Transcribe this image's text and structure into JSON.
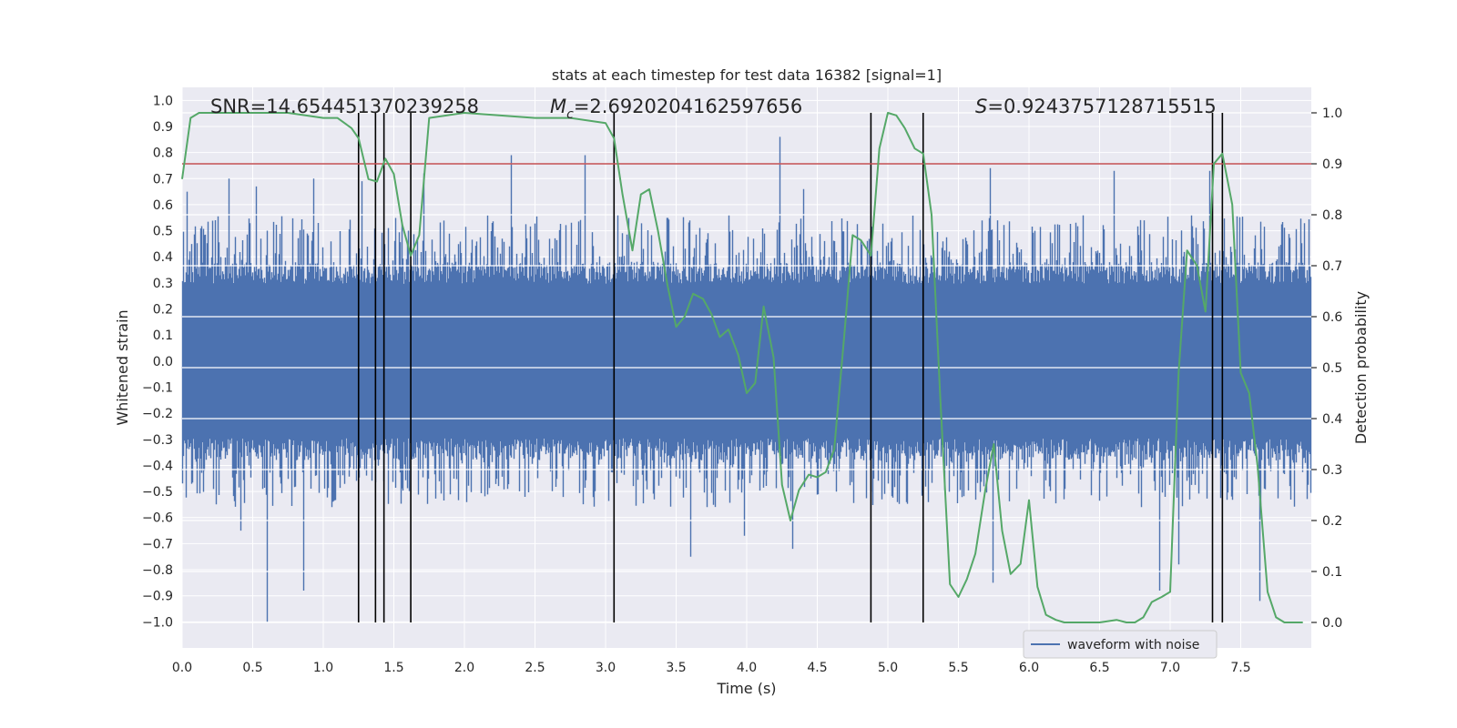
{
  "chart_data": {
    "type": "line",
    "title": "stats at each timestep for test data 16382 [signal=1]",
    "xlabel": "Time (s)",
    "ylabel_left": "Whitened strain",
    "ylabel_right": "Detection probability",
    "xlim": [
      0.0,
      8.0
    ],
    "ylim_left": [
      -1.1,
      1.05
    ],
    "ylim_right": [
      -0.05,
      1.05
    ],
    "x_ticks": [
      0.0,
      0.5,
      1.0,
      1.5,
      2.0,
      2.5,
      3.0,
      3.5,
      4.0,
      4.5,
      5.0,
      5.5,
      6.0,
      6.5,
      7.0,
      7.5
    ],
    "x_tick_labels": [
      "0.0",
      "0.5",
      "1.0",
      "1.5",
      "2.0",
      "2.5",
      "3.0",
      "3.5",
      "4.0",
      "4.5",
      "5.0",
      "5.5",
      "6.0",
      "6.5",
      "7.0",
      "7.5"
    ],
    "y_left_ticks": [
      1.0,
      0.9,
      0.8,
      0.7,
      0.6,
      0.5,
      0.4,
      0.3,
      0.2,
      0.1,
      0.0,
      -0.1,
      -0.2,
      -0.3,
      -0.4,
      -0.5,
      -0.6,
      -0.7,
      -0.8,
      -0.9,
      -1.0
    ],
    "y_left_tick_labels": [
      "1.0",
      "0.9",
      "0.8",
      "0.7",
      "0.6",
      "0.5",
      "0.4",
      "0.3",
      "0.2",
      "0.1",
      "0.0",
      "−0.1",
      "−0.2",
      "−0.3",
      "−0.4",
      "−0.5",
      "−0.6",
      "−0.7",
      "−0.8",
      "−0.9",
      "−1.0"
    ],
    "y_right_ticks": [
      1.0,
      0.9,
      0.8,
      0.7,
      0.6,
      0.5,
      0.4,
      0.3,
      0.2,
      0.1,
      0.0
    ],
    "y_right_tick_labels": [
      "1.0",
      "0.9",
      "0.8",
      "0.7",
      "0.6",
      "0.5",
      "0.4",
      "0.3",
      "0.2",
      "0.1",
      "0.0"
    ],
    "grid": true,
    "legend": {
      "position": "bottom-right",
      "entries": [
        "waveform with noise"
      ]
    },
    "annotations": {
      "snr": "SNR=14.654451370239258",
      "mc_prefix": "M",
      "mc_sub": "c",
      "mc_value": "=2.6920204162597656",
      "s_prefix": "S",
      "s_value": "=0.9243757128715515"
    },
    "threshold": {
      "value": 0.9,
      "axis": "right",
      "color": "#c44e52"
    },
    "vertical_lines": [
      1.25,
      1.37,
      1.43,
      1.62,
      3.06,
      4.88,
      5.25,
      7.3,
      7.37
    ],
    "waveform": {
      "name": "waveform with noise",
      "color": "#4c72b0",
      "typical_amplitude": 0.38,
      "peaks_positive": [
        {
          "x": 0.03,
          "y": 0.65
        },
        {
          "x": 0.33,
          "y": 0.7
        },
        {
          "x": 0.52,
          "y": 0.67
        },
        {
          "x": 0.93,
          "y": 0.7
        },
        {
          "x": 1.27,
          "y": 0.69
        },
        {
          "x": 1.71,
          "y": 0.72
        },
        {
          "x": 2.33,
          "y": 0.79
        },
        {
          "x": 2.85,
          "y": 0.79
        },
        {
          "x": 4.23,
          "y": 0.86
        },
        {
          "x": 4.4,
          "y": 0.66
        },
        {
          "x": 5.72,
          "y": 0.74
        },
        {
          "x": 6.6,
          "y": 0.73
        },
        {
          "x": 7.28,
          "y": 0.73
        }
      ],
      "peaks_negative": [
        {
          "x": 0.6,
          "y": -1.0
        },
        {
          "x": 0.86,
          "y": -0.88
        },
        {
          "x": 0.41,
          "y": -0.65
        },
        {
          "x": 3.6,
          "y": -0.75
        },
        {
          "x": 3.98,
          "y": -0.67
        },
        {
          "x": 4.32,
          "y": -0.72
        },
        {
          "x": 5.74,
          "y": -0.85
        },
        {
          "x": 6.92,
          "y": -0.88
        },
        {
          "x": 7.06,
          "y": -0.78
        },
        {
          "x": 7.63,
          "y": -0.92
        }
      ]
    },
    "detection_probability": {
      "name": "detection probability",
      "color": "#55a868",
      "x": [
        0.0,
        0.06,
        0.12,
        0.25,
        0.5,
        0.75,
        1.0,
        1.1,
        1.2,
        1.25,
        1.32,
        1.38,
        1.44,
        1.5,
        1.56,
        1.62,
        1.68,
        1.75,
        2.0,
        2.5,
        2.75,
        3.0,
        3.06,
        3.12,
        3.19,
        3.25,
        3.31,
        3.37,
        3.44,
        3.5,
        3.56,
        3.62,
        3.69,
        3.75,
        3.81,
        3.87,
        3.94,
        4.0,
        4.06,
        4.12,
        4.19,
        4.25,
        4.31,
        4.37,
        4.44,
        4.5,
        4.56,
        4.62,
        4.69,
        4.75,
        4.81,
        4.88,
        4.94,
        5.0,
        5.06,
        5.12,
        5.19,
        5.25,
        5.31,
        5.37,
        5.44,
        5.5,
        5.56,
        5.62,
        5.69,
        5.75,
        5.81,
        5.87,
        5.94,
        6.0,
        6.06,
        6.12,
        6.19,
        6.25,
        6.5,
        6.62,
        6.69,
        6.75,
        6.81,
        6.87,
        6.94,
        7.0,
        7.06,
        7.12,
        7.19,
        7.25,
        7.31,
        7.37,
        7.44,
        7.5,
        7.56,
        7.62,
        7.69,
        7.75,
        7.81,
        7.87,
        7.94
      ],
      "y": [
        0.87,
        0.99,
        1.0,
        1.0,
        1.0,
        1.0,
        0.99,
        0.99,
        0.97,
        0.95,
        0.87,
        0.865,
        0.91,
        0.88,
        0.78,
        0.72,
        0.76,
        0.99,
        1.0,
        0.99,
        0.99,
        0.98,
        0.95,
        0.84,
        0.73,
        0.84,
        0.85,
        0.77,
        0.66,
        0.58,
        0.6,
        0.645,
        0.635,
        0.605,
        0.56,
        0.575,
        0.525,
        0.45,
        0.47,
        0.62,
        0.52,
        0.27,
        0.2,
        0.26,
        0.29,
        0.285,
        0.295,
        0.34,
        0.56,
        0.76,
        0.75,
        0.72,
        0.93,
        1.0,
        0.995,
        0.97,
        0.93,
        0.92,
        0.8,
        0.45,
        0.075,
        0.05,
        0.085,
        0.135,
        0.26,
        0.35,
        0.18,
        0.095,
        0.115,
        0.24,
        0.07,
        0.015,
        0.005,
        0.0,
        0.0,
        0.005,
        0.0,
        0.0,
        0.01,
        0.04,
        0.05,
        0.06,
        0.49,
        0.73,
        0.7,
        0.61,
        0.9,
        0.92,
        0.82,
        0.49,
        0.45,
        0.305,
        0.06,
        0.01,
        0.0,
        0.0,
        0.0
      ]
    }
  }
}
